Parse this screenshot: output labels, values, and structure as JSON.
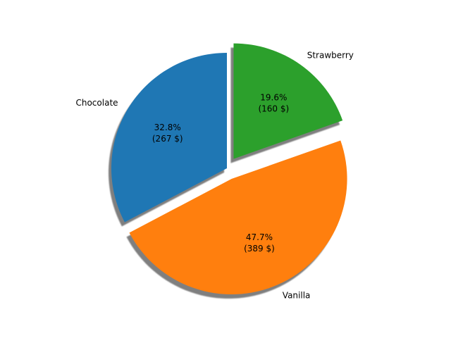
{
  "chart_data": {
    "type": "pie",
    "title": "",
    "start_angle_deg": 90,
    "direction": "counterclockwise",
    "shadow": true,
    "slices": [
      {
        "label": "Chocolate",
        "value": 267,
        "percent_label": "32.8%",
        "value_label": "(267 $)",
        "color": "#1f77b4",
        "explode": 0
      },
      {
        "label": "Vanilla",
        "value": 389,
        "percent_label": "47.7%",
        "value_label": "(389 $)",
        "color": "#ff7f0e",
        "explode": 0.1
      },
      {
        "label": "Strawberry",
        "value": 160,
        "percent_label": "19.6%",
        "value_label": "(160 $)",
        "color": "#2ca02c",
        "explode": 0.1
      }
    ]
  }
}
